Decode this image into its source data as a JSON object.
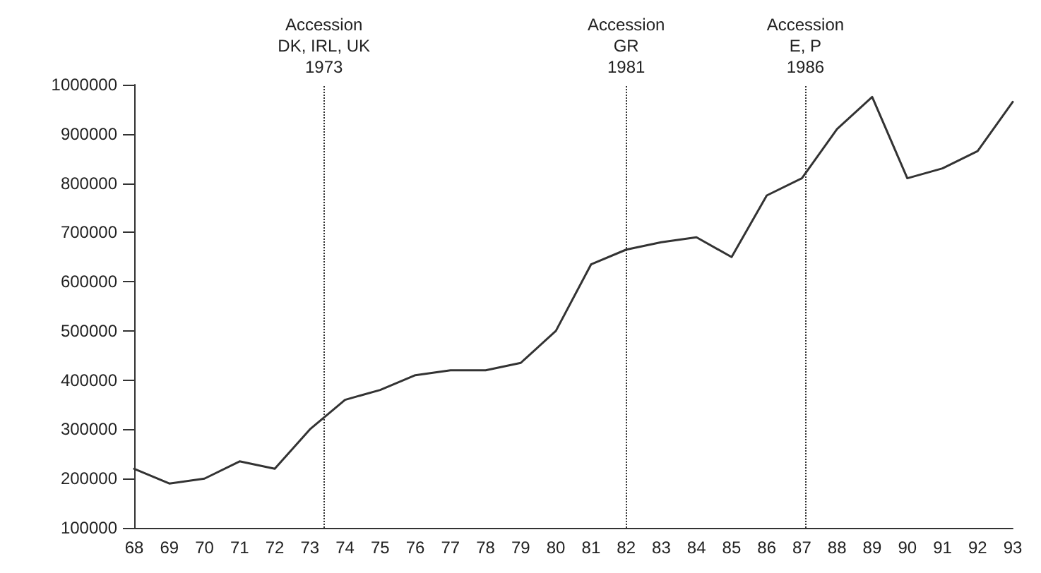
{
  "chart_data": {
    "type": "line",
    "x": [
      68,
      69,
      70,
      71,
      72,
      73,
      74,
      75,
      76,
      77,
      78,
      79,
      80,
      81,
      82,
      83,
      84,
      85,
      86,
      87,
      88,
      89,
      90,
      91,
      92,
      93
    ],
    "series": [
      {
        "color": "#333333",
        "values": [
          220000,
          190000,
          200000,
          235000,
          220000,
          300000,
          360000,
          380000,
          410000,
          420000,
          420000,
          435000,
          500000,
          635000,
          665000,
          680000,
          690000,
          650000,
          775000,
          810000,
          910000,
          975000,
          810000,
          830000,
          865000,
          965000
        ]
      }
    ],
    "xlim": [
      68,
      93
    ],
    "xticks": [
      68,
      69,
      70,
      71,
      72,
      73,
      74,
      75,
      76,
      77,
      78,
      79,
      80,
      81,
      82,
      83,
      84,
      85,
      86,
      87,
      88,
      89,
      90,
      91,
      92,
      93
    ],
    "ylim": [
      100000,
      1000000
    ],
    "yticks": [
      100000,
      200000,
      300000,
      400000,
      500000,
      600000,
      700000,
      800000,
      900000,
      1000000
    ],
    "ref_lines": [
      {
        "axis": "x",
        "value": 73.4,
        "label": "Accession\nDK, IRL, UK\n1973",
        "line_style": "dotted"
      },
      {
        "axis": "x",
        "value": 82,
        "label": "Accession\nGR\n1981",
        "line_style": "dotted"
      },
      {
        "axis": "x",
        "value": 87.1,
        "label": "Accession\nE, P\n1986",
        "line_style": "dotted"
      }
    ],
    "grid": false,
    "marker": "none",
    "line_style": "solid"
  }
}
